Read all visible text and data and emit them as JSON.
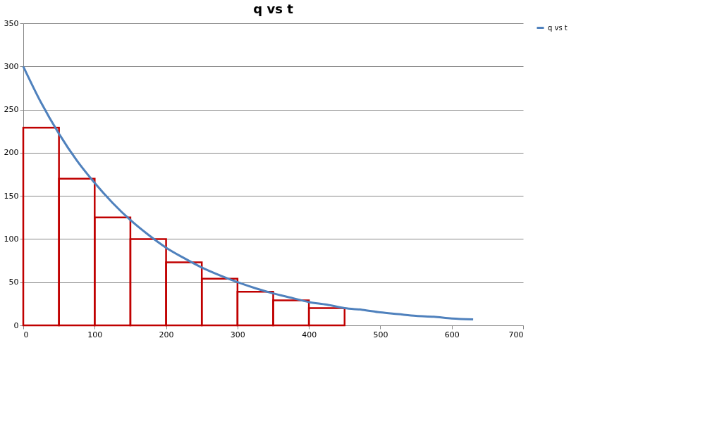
{
  "chart_data": {
    "type": "line",
    "title": "q vs t",
    "xlim": [
      0,
      700
    ],
    "xticks": [
      0,
      100,
      200,
      300,
      400,
      500,
      600,
      700
    ],
    "ylim": [
      0,
      350
    ],
    "yticks": [
      0,
      50,
      100,
      150,
      200,
      250,
      300,
      350
    ],
    "grid": "y",
    "legend": "right",
    "series": [
      {
        "type": "histogram",
        "color": "#c00000",
        "bins": [
          0,
          50,
          100,
          150,
          200,
          250,
          300,
          350,
          400,
          450
        ],
        "values": [
          229,
          170,
          125,
          100,
          73,
          54,
          39,
          29,
          20
        ]
      },
      {
        "name": "q vs t",
        "color": "#4f81bd",
        "x": [
          0,
          25,
          50,
          75,
          100,
          125,
          150,
          175,
          200,
          225,
          250,
          275,
          300,
          325,
          350,
          375,
          400,
          425,
          450,
          475,
          500,
          525,
          550,
          575,
          600,
          630
        ],
        "values": [
          300,
          258,
          222,
          191,
          165,
          142,
          122,
          105,
          90,
          78,
          67,
          58,
          50,
          43,
          37,
          32,
          27,
          24,
          20,
          18,
          15,
          13,
          11,
          10,
          8,
          7
        ]
      }
    ]
  }
}
